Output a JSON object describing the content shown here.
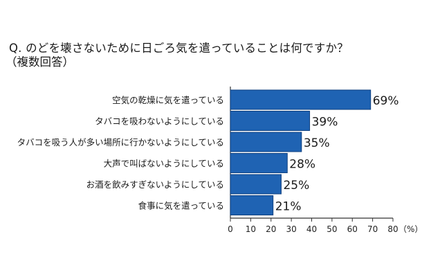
{
  "chart_data": {
    "type": "bar",
    "orientation": "horizontal",
    "title": "Q. のどを壊さないために日ごろ気を遣っていることは何ですか？",
    "subtitle": "（複数回答）",
    "categories": [
      "空気の乾燥に気を遣っている",
      "タバコを吸わないようにしている",
      "タバコを吸う人が多い場所に行かないようにしている",
      "大声で叫ばないようにしている",
      "お酒を飲みすぎないようにしている",
      "食事に気を遣っている"
    ],
    "values": [
      69,
      39,
      35,
      28,
      25,
      21
    ],
    "value_labels": [
      "69%",
      "39%",
      "35%",
      "28%",
      "25%",
      "21%"
    ],
    "xlim": [
      0,
      80
    ],
    "xticks": [
      0,
      10,
      20,
      30,
      40,
      50,
      60,
      70,
      80
    ],
    "xunit": "（%）",
    "bar_color": "#1f63b3",
    "bar_edge_color": "#0d3f7f",
    "grid": false
  }
}
